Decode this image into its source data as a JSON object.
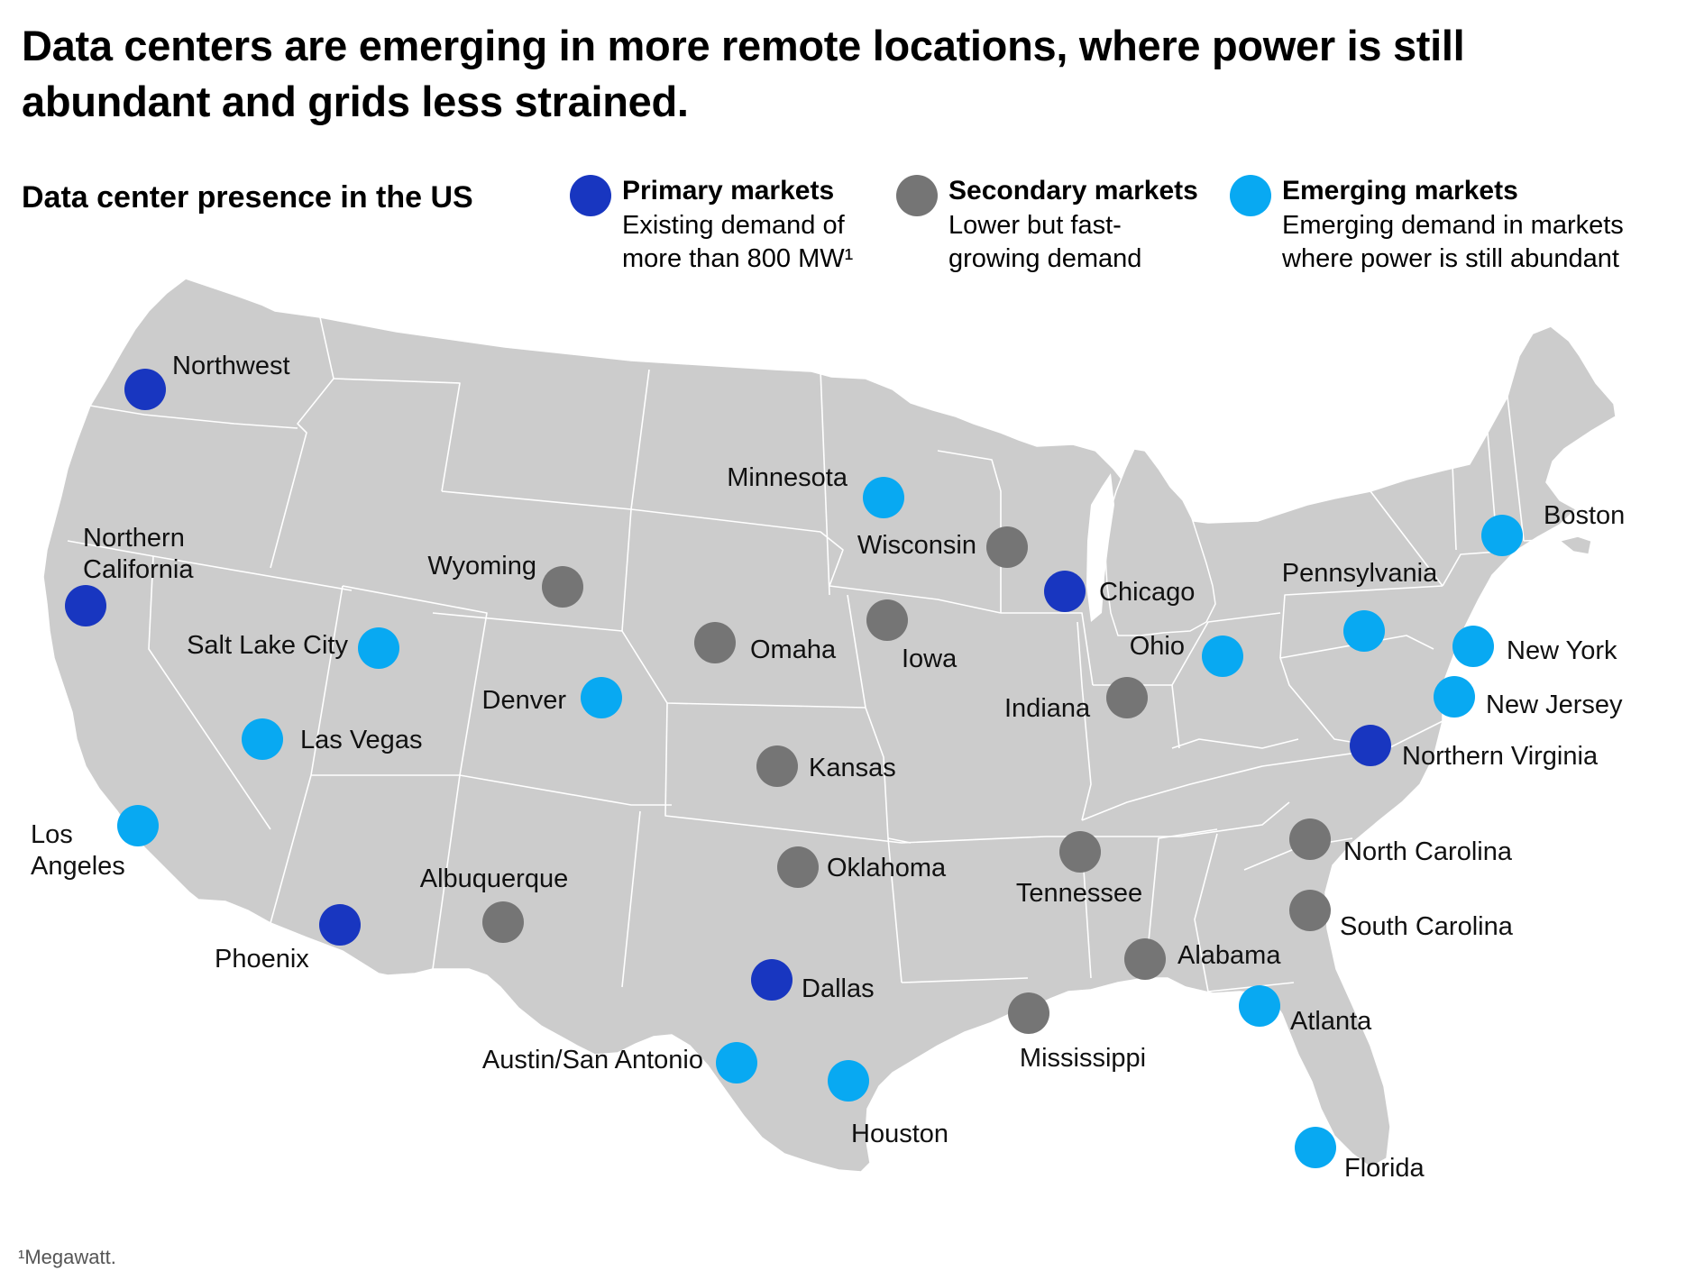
{
  "title": "Data centers are emerging in more remote locations, where power is still abundant and grids less strained.",
  "subtitle": "Data center presence in the US",
  "legend": [
    {
      "key": "primary",
      "name": "Primary markets",
      "desc1": "Existing demand of",
      "desc2": "more than 800 MW¹",
      "color": "#1836c0"
    },
    {
      "key": "secondary",
      "name": "Secondary markets",
      "desc1": "Lower but fast-",
      "desc2": "growing demand",
      "color": "#757575"
    },
    {
      "key": "emerging",
      "name": "Emerging markets",
      "desc1": "Emerging demand in markets",
      "desc2": "where power is still abundant",
      "color": "#08a9f2"
    }
  ],
  "colors": {
    "land": "#cccccc",
    "border": "#ffffff"
  },
  "markets": [
    {
      "name": "Northwest",
      "type": "primary"
    },
    {
      "name": "Northern California",
      "type": "primary"
    },
    {
      "name": "Phoenix",
      "type": "primary"
    },
    {
      "name": "Dallas",
      "type": "primary"
    },
    {
      "name": "Chicago",
      "type": "primary"
    },
    {
      "name": "Northern Virginia",
      "type": "primary"
    },
    {
      "name": "Wyoming",
      "type": "secondary"
    },
    {
      "name": "Omaha",
      "type": "secondary"
    },
    {
      "name": "Iowa",
      "type": "secondary"
    },
    {
      "name": "Wisconsin",
      "type": "secondary"
    },
    {
      "name": "Kansas",
      "type": "secondary"
    },
    {
      "name": "Oklahoma",
      "type": "secondary"
    },
    {
      "name": "Albuquerque",
      "type": "secondary"
    },
    {
      "name": "Indiana",
      "type": "secondary"
    },
    {
      "name": "Tennessee",
      "type": "secondary"
    },
    {
      "name": "Alabama",
      "type": "secondary"
    },
    {
      "name": "Mississippi",
      "type": "secondary"
    },
    {
      "name": "North Carolina",
      "type": "secondary"
    },
    {
      "name": "South Carolina",
      "type": "secondary"
    },
    {
      "name": "Minnesota",
      "type": "emerging"
    },
    {
      "name": "Salt Lake City",
      "type": "emerging"
    },
    {
      "name": "Denver",
      "type": "emerging"
    },
    {
      "name": "Las Vegas",
      "type": "emerging"
    },
    {
      "name": "Los Angeles",
      "type": "emerging"
    },
    {
      "name": "Austin/San Antonio",
      "type": "emerging"
    },
    {
      "name": "Houston",
      "type": "emerging"
    },
    {
      "name": "Ohio",
      "type": "emerging"
    },
    {
      "name": "Pennsylvania",
      "type": "emerging"
    },
    {
      "name": "New York",
      "type": "emerging"
    },
    {
      "name": "New Jersey",
      "type": "emerging"
    },
    {
      "name": "Boston",
      "type": "emerging"
    },
    {
      "name": "Atlanta",
      "type": "emerging"
    },
    {
      "name": "Florida",
      "type": "emerging"
    }
  ],
  "footnote": "¹Megawatt."
}
